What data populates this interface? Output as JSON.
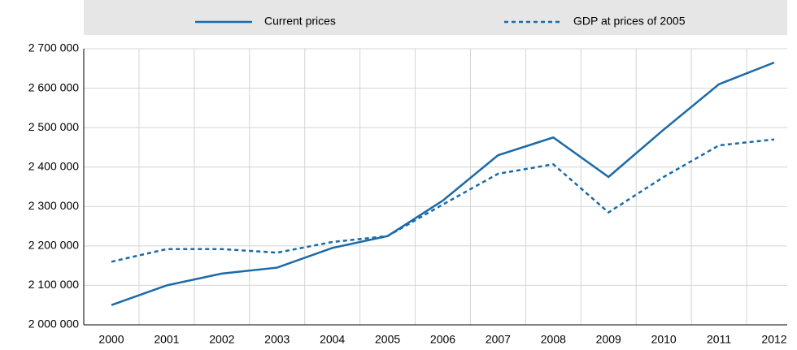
{
  "chart_data": {
    "type": "line",
    "legend": "top",
    "categories": [
      "2000",
      "2001",
      "2002",
      "2003",
      "2004",
      "2005",
      "2006",
      "2007",
      "2008",
      "2009",
      "2010",
      "2011",
      "2012"
    ],
    "series": [
      {
        "name": "Current prices",
        "color": "#1a6aa8",
        "style": "solid",
        "values": [
          2050000,
          2100000,
          2130000,
          2145000,
          2195000,
          2225000,
          2315000,
          2430000,
          2475000,
          2375000,
          2495000,
          2610000,
          2665000
        ]
      },
      {
        "name": "GDP at prices of 2005",
        "color": "#1a6aa8",
        "style": "dashed",
        "values": [
          2160000,
          2192000,
          2192000,
          2183000,
          2210000,
          2225000,
          2305000,
          2383000,
          2407000,
          2285000,
          2375000,
          2455000,
          2470000
        ]
      }
    ],
    "ylim": [
      2000000,
      2700000
    ],
    "yticks": [
      {
        "value": 2000000,
        "label": "2 000 000"
      },
      {
        "value": 2100000,
        "label": "2 100 000"
      },
      {
        "value": 2200000,
        "label": "2 200 000"
      },
      {
        "value": 2300000,
        "label": "2 300 000"
      },
      {
        "value": 2400000,
        "label": "2 400 000"
      },
      {
        "value": 2500000,
        "label": "2 500 000"
      },
      {
        "value": 2600000,
        "label": "2 600 000"
      },
      {
        "value": 2700000,
        "label": "2 700 000"
      }
    ],
    "grid": true
  }
}
